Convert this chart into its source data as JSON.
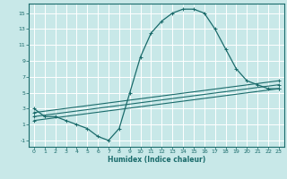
{
  "title": "",
  "xlabel": "Humidex (Indice chaleur)",
  "bg_color": "#c8e8e8",
  "grid_color": "#ffffff",
  "line_color": "#1a6b6b",
  "xlim": [
    -0.5,
    23.5
  ],
  "ylim": [
    -1.8,
    16.2
  ],
  "xticks": [
    0,
    1,
    2,
    3,
    4,
    5,
    6,
    7,
    8,
    9,
    10,
    11,
    12,
    13,
    14,
    15,
    16,
    17,
    18,
    19,
    20,
    21,
    22,
    23
  ],
  "yticks": [
    -1,
    1,
    3,
    5,
    7,
    9,
    11,
    13,
    15
  ],
  "line1_x": [
    0,
    1,
    2,
    3,
    4,
    5,
    6,
    7,
    8,
    9,
    10,
    11,
    12,
    13,
    14,
    15,
    16,
    17,
    18,
    19,
    20,
    21,
    22,
    23
  ],
  "line1_y": [
    3,
    2,
    2,
    1.5,
    1,
    0.5,
    -0.5,
    -1,
    0.5,
    5,
    9.5,
    12.5,
    14,
    15,
    15.5,
    15.5,
    15,
    13,
    10.5,
    8,
    6.5,
    6,
    5.5,
    5.5
  ],
  "line2_x": [
    0,
    23
  ],
  "line2_y": [
    2.5,
    6.5
  ],
  "line3_x": [
    0,
    23
  ],
  "line3_y": [
    2.0,
    6.0
  ],
  "line4_x": [
    0,
    23
  ],
  "line4_y": [
    1.5,
    5.5
  ],
  "figwidth": 3.2,
  "figheight": 2.0,
  "dpi": 100
}
